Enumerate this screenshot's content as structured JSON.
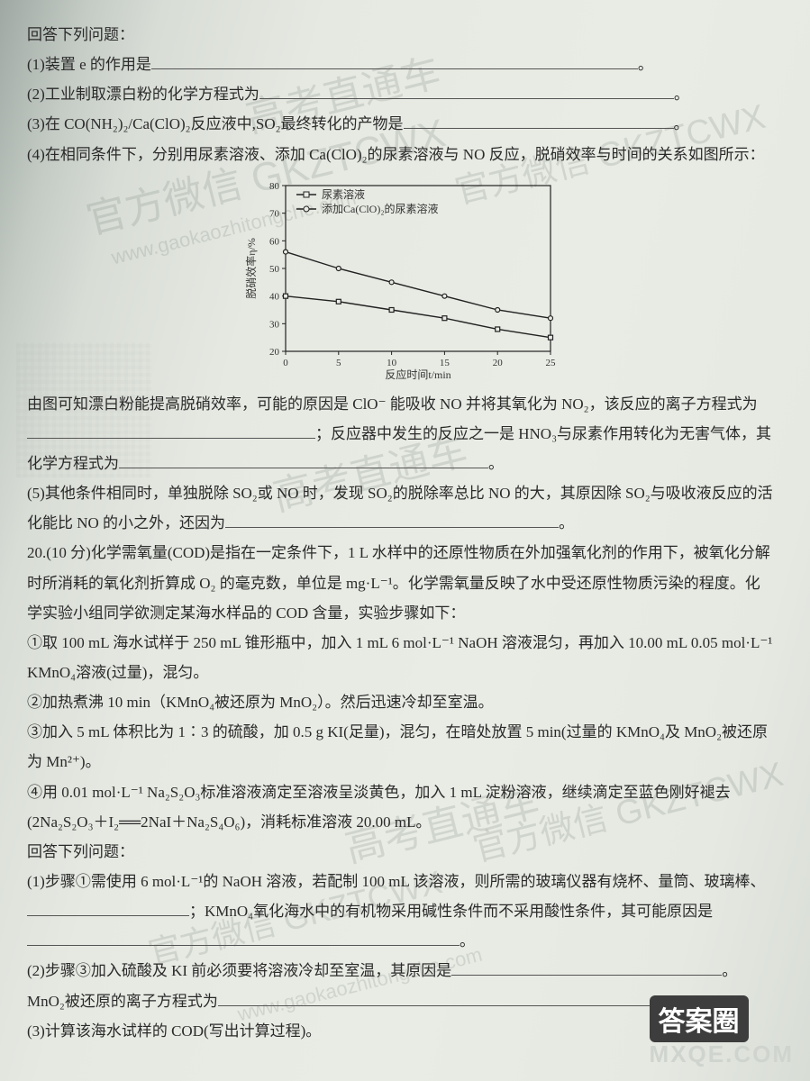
{
  "intro": "回答下列问题：",
  "q1": {
    "label": "(1)装置 e 的作用是",
    "tail_period": "。"
  },
  "q2": {
    "label": "(2)工业制取漂白粉的化学方程式为",
    "tail_period": "。"
  },
  "q3": {
    "label": "(3)在 CO(NH₂)₂/Ca(ClO)₂反应液中,SO₂最终转化的产物是",
    "tail_period": "。"
  },
  "q4": {
    "label": "(4)在相同条件下，分别用尿素溶液、添加 Ca(ClO)₂的尿素溶液与 NO 反应，脱硝效率与时间的关系如图所示：",
    "after_fig_a": "由图可知漂白粉能提高脱硝效率，可能的原因是 ClO⁻ 能吸收 NO 并将其氧化为 NO₂，该反应的离子方程式为",
    "after_fig_b": "；反应器中发生的反应之一是 HNO₃与尿素作用转化为无害气体，其化学方程式为",
    "tail_period": "。"
  },
  "q5": {
    "label": "(5)其他条件相同时，单独脱除 SO₂或 NO 时，发现 SO₂的脱除率总比 NO 的大，其原因除 SO₂与吸收液反应的活化能比 NO 的小之外，还因为",
    "tail_period": "。"
  },
  "q20": {
    "num": "20.(10 分)",
    "stem_a": "化学需氧量(COD)是指在一定条件下，1 L 水样中的还原性物质在外加强氧化剂的作用下，被氧化分解时所消耗的氧化剂折算成 O₂ 的毫克数，单位是 mg·L⁻¹。化学需氧量反映了水中受还原性物质污染的程度。化学实验小组同学欲测定某海水样品的 COD 含量，实验步骤如下：",
    "step1": "①取 100 mL 海水试样于 250 mL 锥形瓶中，加入 1 mL 6 mol·L⁻¹ NaOH 溶液混匀，再加入 10.00 mL 0.05 mol·L⁻¹ KMnO₄溶液(过量)，混匀。",
    "step2": "②加热煮沸 10 min（KMnO₄被还原为 MnO₂）。然后迅速冷却至室温。",
    "step3": "③加入 5 mL 体积比为 1∶3 的硫酸，加 0.5 g KI(足量)，混匀，在暗处放置 5 min(过量的 KMnO₄及 MnO₂被还原为 Mn²⁺)。",
    "step4": "④用 0.01 mol·L⁻¹ Na₂S₂O₃标准溶液滴定至溶液呈淡黄色，加入 1 mL 淀粉溶液，继续滴定至蓝色刚好褪去(2Na₂S₂O₃＋I₂══2NaI＋Na₂S₄O₆)，消耗标准溶液 20.00 mL。",
    "answer_intro": "回答下列问题：",
    "sub1_a": "(1)步骤①需使用 6 mol·L⁻¹的 NaOH 溶液，若配制 100 mL 该溶液，则所需的玻璃仪器有烧杯、量筒、玻璃棒、",
    "sub1_b": "；KMnO₄氧化海水中的有机物采用碱性条件而不采用酸性条件，其可能原因是",
    "sub1_tail": "。",
    "sub2_a": "(2)步骤③加入硫酸及 KI 前必须要将溶液冷却至室温，其原因是",
    "sub2_b": "。MnO₂被还原的离子方程式为",
    "sub2_tail": "。",
    "sub3": "(3)计算该海水试样的 COD(写出计算过程)。"
  },
  "chart": {
    "type": "line",
    "xlabel": "反应时间t/min",
    "ylabel": "脱硝效率η/%",
    "xlim": [
      0,
      25
    ],
    "xticks": [
      0,
      5,
      10,
      15,
      20,
      25
    ],
    "ylim": [
      20,
      80
    ],
    "yticks": [
      20,
      30,
      40,
      50,
      60,
      70,
      80
    ],
    "background_color": "#e9ece5",
    "axis_color": "#222",
    "series": [
      {
        "name": "尿素溶液",
        "marker": "square",
        "color": "#222",
        "x": [
          0,
          5,
          10,
          15,
          20,
          25
        ],
        "y": [
          40,
          38,
          35,
          32,
          28,
          25
        ]
      },
      {
        "name": "添加Ca(ClO)₂的尿素溶液",
        "marker": "circle",
        "color": "#222",
        "x": [
          0,
          5,
          10,
          15,
          20,
          25
        ],
        "y": [
          56,
          50,
          45,
          40,
          35,
          32
        ]
      }
    ],
    "legend_pos": "top-inside",
    "title_fontsize": 12,
    "line_width": 1.4,
    "marker_size": 5
  },
  "watermarks": {
    "wm1": "高考直通车",
    "wm2": "官方微信 GKZTCWX",
    "wm3": "www.gaokaozhitongche.com"
  },
  "brands": {
    "da": "答案圈",
    "mxqe": "MXQE.COM"
  }
}
